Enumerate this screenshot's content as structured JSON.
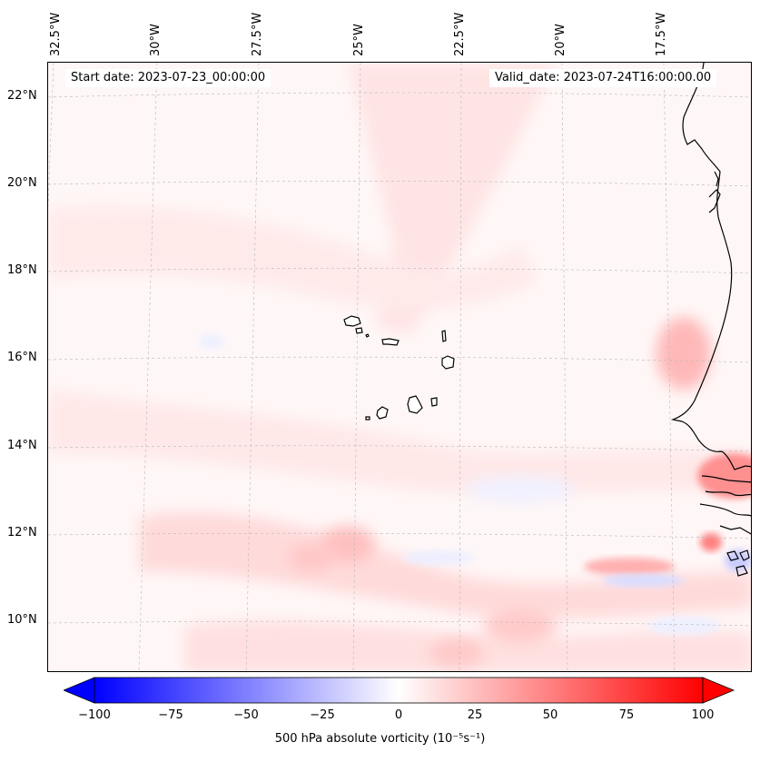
{
  "map": {
    "start_label": "Start date: 2023-07-23_00:00:00",
    "valid_label": "Valid_date: 2023-07-24T16:00:00.00",
    "longitude_labels": [
      "32.5°W",
      "30°W",
      "27.5°W",
      "25°W",
      "22.5°W",
      "20°W",
      "17.5°W"
    ],
    "latitude_labels": [
      "22°N",
      "20°N",
      "18°N",
      "16°N",
      "14°N",
      "12°N",
      "10°N"
    ],
    "field": "500 hPa absolute vorticity",
    "region": "Eastern tropical Atlantic, Cape Verde Islands and West African coast"
  },
  "colorbar": {
    "label": "500 hPa absolute vorticity (10⁻⁵s⁻¹)",
    "ticks": [
      "−100",
      "−75",
      "−50",
      "−25",
      "0",
      "25",
      "50",
      "75",
      "100"
    ],
    "min": -100,
    "max": 100,
    "colormap": "bwr",
    "low_color": "#0000ff",
    "mid_color": "#ffffff",
    "high_color": "#ff0000"
  }
}
